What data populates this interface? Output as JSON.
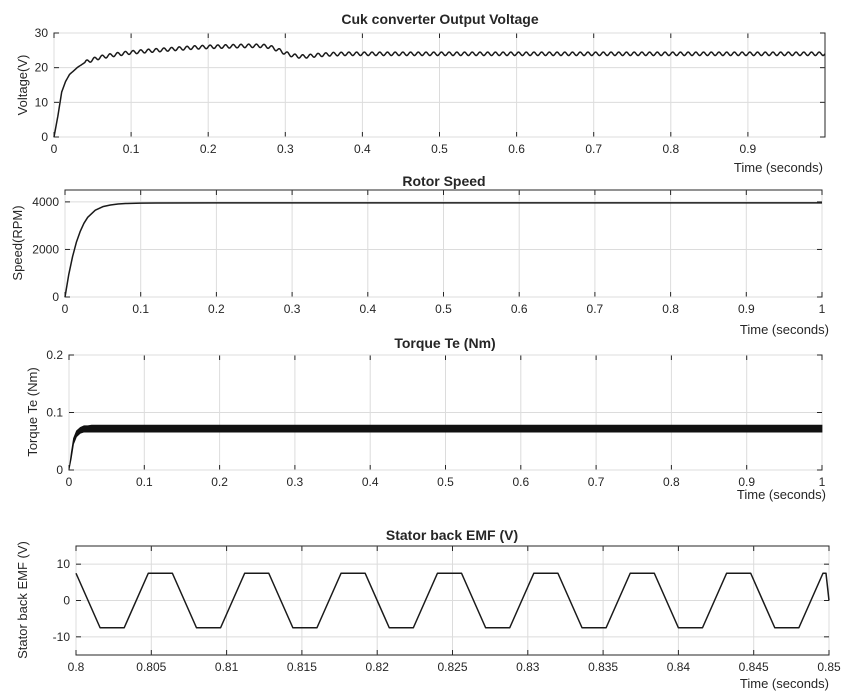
{
  "chart_data": [
    {
      "type": "line",
      "title": "Cuk converter Output Voltage",
      "xlabel": "Time (seconds)",
      "ylabel": "Voltage(V)",
      "xlim": [
        0,
        1
      ],
      "ylim": [
        0,
        30
      ],
      "xticks": [
        0,
        0.1,
        0.2,
        0.3,
        0.4,
        0.5,
        0.6,
        0.7,
        0.8,
        0.9
      ],
      "xtick_labels": [
        "0",
        "0.1",
        "0.2",
        "0.3",
        "0.4",
        "0.5",
        "0.6",
        "0.7",
        "0.8",
        "0.9"
      ],
      "yticks": [
        0,
        10,
        20,
        30
      ],
      "ytick_labels": [
        "0",
        "10",
        "20",
        "30"
      ],
      "grid": true,
      "series": [
        {
          "x": [
            0,
            0.005,
            0.01,
            0.015,
            0.02,
            0.03,
            0.04,
            0.05,
            0.06,
            0.08,
            0.1,
            0.12,
            0.15,
            0.18,
            0.2,
            0.22,
            0.25,
            0.27,
            0.28,
            0.29,
            0.3,
            0.31,
            0.32,
            0.33,
            0.34,
            0.36,
            0.38,
            0.4,
            0.5,
            0.6,
            0.7,
            0.8,
            0.9,
            1.0
          ],
          "y": [
            0,
            6,
            13,
            16,
            18,
            20,
            21.5,
            22.3,
            23,
            23.8,
            24.4,
            24.8,
            25.3,
            25.8,
            26,
            26.1,
            26.3,
            26.3,
            26,
            25.2,
            24.2,
            23.5,
            23.2,
            23.3,
            23.6,
            23.9,
            24,
            24,
            24,
            24,
            24,
            24,
            24,
            24
          ],
          "ripple_amplitude": 0.5,
          "ripple_period": 0.01
        }
      ]
    },
    {
      "type": "line",
      "title": "Rotor Speed",
      "xlabel": "Time (seconds)",
      "ylabel": "Speed(RPM)",
      "xlim": [
        0,
        1
      ],
      "ylim": [
        0,
        4500
      ],
      "xticks": [
        0,
        0.1,
        0.2,
        0.3,
        0.4,
        0.5,
        0.6,
        0.7,
        0.8,
        0.9,
        1
      ],
      "xtick_labels": [
        "0",
        "0.1",
        "0.2",
        "0.3",
        "0.4",
        "0.5",
        "0.6",
        "0.7",
        "0.8",
        "0.9",
        "1"
      ],
      "yticks": [
        0,
        2000,
        4000
      ],
      "ytick_labels": [
        "0",
        "2000",
        "4000"
      ],
      "grid": true,
      "series": [
        {
          "x": [
            0,
            0.005,
            0.01,
            0.015,
            0.02,
            0.025,
            0.03,
            0.04,
            0.05,
            0.06,
            0.07,
            0.08,
            0.1,
            0.12,
            0.2,
            0.5,
            1.0
          ],
          "y": [
            0,
            950,
            1700,
            2300,
            2750,
            3100,
            3350,
            3650,
            3800,
            3870,
            3910,
            3930,
            3950,
            3955,
            3960,
            3960,
            3960
          ]
        }
      ]
    },
    {
      "type": "line",
      "title": "Torque Te (Nm)",
      "xlabel": "Time (seconds)",
      "ylabel": "Torque Te (Nm)",
      "xlim": [
        0,
        1
      ],
      "ylim": [
        0,
        0.2
      ],
      "xticks": [
        0,
        0.1,
        0.2,
        0.3,
        0.4,
        0.5,
        0.6,
        0.7,
        0.8,
        0.9,
        1
      ],
      "xtick_labels": [
        "0",
        "0.1",
        "0.2",
        "0.3",
        "0.4",
        "0.5",
        "0.6",
        "0.7",
        "0.8",
        "0.9",
        "1"
      ],
      "yticks": [
        0,
        0.1,
        0.2
      ],
      "ytick_labels": [
        "0",
        "0.1",
        "0.2"
      ],
      "grid": true,
      "series": [
        {
          "x": [
            0,
            0.003,
            0.006,
            0.01,
            0.015,
            0.02,
            0.025,
            0.03,
            1.0
          ],
          "y_upper": [
            0,
            0.03,
            0.055,
            0.068,
            0.074,
            0.077,
            0.077,
            0.078,
            0.078
          ],
          "y_lower": [
            0,
            0.02,
            0.045,
            0.058,
            0.064,
            0.066,
            0.066,
            0.066,
            0.066
          ]
        }
      ]
    },
    {
      "type": "line",
      "title": "Stator back EMF  (V)",
      "xlabel": "Time (seconds)",
      "ylabel": "Stator back EMF  (V)",
      "xlim": [
        0.8,
        0.85
      ],
      "ylim": [
        -15,
        15
      ],
      "xticks": [
        0.8,
        0.805,
        0.81,
        0.815,
        0.82,
        0.825,
        0.83,
        0.835,
        0.84,
        0.845,
        0.85
      ],
      "xtick_labels": [
        "0.8",
        "0.805",
        "0.81",
        "0.815",
        "0.82",
        "0.825",
        "0.83",
        "0.835",
        "0.84",
        "0.845",
        "0.85"
      ],
      "yticks": [
        -10,
        0,
        10
      ],
      "ytick_labels": [
        "-10",
        "0",
        "10"
      ],
      "grid": true,
      "series": [
        {
          "x": [
            0.8,
            0.8016,
            0.8018,
            0.8032,
            0.8048,
            0.805,
            0.8064,
            0.808,
            0.8082,
            0.8096,
            0.8112,
            0.8114,
            0.8128,
            0.8144,
            0.8146,
            0.816,
            0.8176,
            0.8178,
            0.8192,
            0.8208,
            0.821,
            0.8224,
            0.824,
            0.8242,
            0.8256,
            0.8272,
            0.8274,
            0.8288,
            0.8304,
            0.8306,
            0.832,
            0.8336,
            0.8338,
            0.8352,
            0.8368,
            0.837,
            0.8384,
            0.84,
            0.8402,
            0.8416,
            0.8432,
            0.8434,
            0.8448,
            0.8464,
            0.8466,
            0.848,
            0.8496,
            0.8498,
            0.85
          ],
          "y": [
            7.5,
            -7.5,
            -7.5,
            -7.5,
            7.5,
            7.5,
            7.5,
            -7.5,
            -7.5,
            -7.5,
            7.5,
            7.5,
            7.5,
            -7.5,
            -7.5,
            -7.5,
            7.5,
            7.5,
            7.5,
            -7.5,
            -7.5,
            -7.5,
            7.5,
            7.5,
            7.5,
            -7.5,
            -7.5,
            -7.5,
            7.5,
            7.5,
            7.5,
            -7.5,
            -7.5,
            -7.5,
            7.5,
            7.5,
            7.5,
            -7.5,
            -7.5,
            -7.5,
            7.5,
            7.5,
            7.5,
            -7.5,
            -7.5,
            -7.5,
            7.5,
            7.5,
            0
          ]
        }
      ]
    }
  ]
}
